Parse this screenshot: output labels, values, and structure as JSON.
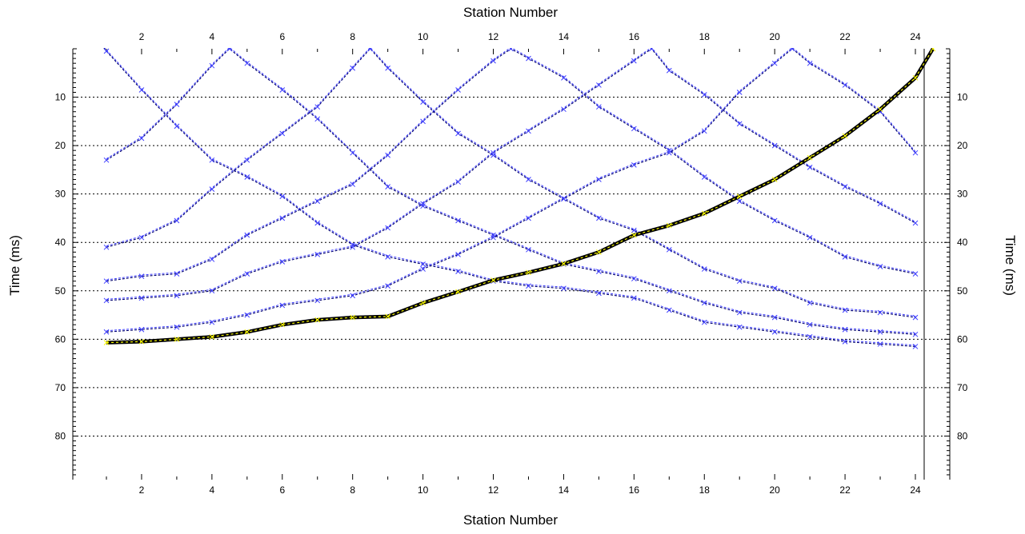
{
  "chart_data": {
    "type": "line",
    "title": "",
    "xlabel": "Station Number",
    "ylabel": "Time (ms)",
    "y_reversed": true,
    "xlim": [
      0.1,
      24.6
    ],
    "ylim": [
      0,
      89
    ],
    "x_ticks": [
      2,
      4,
      6,
      8,
      10,
      12,
      14,
      16,
      18,
      20,
      22,
      24
    ],
    "y_ticks": [
      10,
      20,
      30,
      40,
      50,
      60,
      70,
      80
    ],
    "grid": "horizontal-dashed",
    "marker_line_x": 24.25,
    "colors": {
      "pick": "#3c3cff",
      "model": "#00006e",
      "highlight": "#000000",
      "highlight_fill": "#ffff00"
    },
    "series": [
      {
        "x": [
          0.5,
          1,
          2,
          3,
          4,
          5,
          6,
          7,
          8,
          9,
          10,
          11,
          12,
          13,
          14,
          15,
          16,
          17,
          18,
          19,
          20,
          21,
          22,
          23,
          24
        ],
        "y": [
          -4,
          0.5,
          8.5,
          16,
          23,
          26.5,
          30.5,
          36,
          40.5,
          43,
          44.5,
          46,
          48,
          49,
          49.5,
          50.5,
          51.5,
          54,
          56.5,
          57.5,
          58.5,
          59.5,
          60.5,
          61,
          61.5
        ]
      },
      {
        "x": [
          1,
          2,
          3,
          4,
          4.5,
          5,
          6,
          7,
          8,
          9,
          10,
          11,
          12,
          13,
          14,
          15,
          16,
          17,
          18,
          19,
          20,
          21,
          22,
          23,
          24
        ],
        "y": [
          23,
          18.5,
          11.5,
          3.5,
          0,
          3,
          8.5,
          14.5,
          21.5,
          28.5,
          32.5,
          35.5,
          38.5,
          41.5,
          44.5,
          46,
          47.5,
          50,
          52.5,
          54.5,
          55.5,
          57,
          58,
          58.5,
          59
        ]
      },
      {
        "x": [
          1,
          2,
          3,
          4,
          5,
          6,
          7,
          8,
          8.5,
          9,
          10,
          11,
          12,
          13,
          14,
          15,
          16,
          17,
          18,
          19,
          20,
          21,
          22,
          23,
          24
        ],
        "y": [
          41,
          39,
          35.5,
          29,
          23,
          17.5,
          12,
          4,
          0,
          4,
          11,
          17.5,
          22,
          27,
          31,
          35,
          37.5,
          41.5,
          45.5,
          48,
          49.5,
          52.5,
          54,
          54.5,
          55.5
        ]
      },
      {
        "x": [
          1,
          2,
          3,
          4,
          5,
          6,
          7,
          8,
          9,
          10,
          11,
          12,
          12.5,
          13,
          14,
          15,
          16,
          17,
          18,
          19,
          20,
          21,
          22,
          23,
          24
        ],
        "y": [
          48,
          47,
          46.5,
          43.5,
          38.5,
          35,
          31.5,
          28,
          22,
          15,
          8.5,
          2.5,
          0,
          2,
          6,
          12,
          16.5,
          21,
          26.5,
          31.5,
          35.5,
          39,
          43,
          45,
          46.5
        ]
      },
      {
        "x": [
          1,
          2,
          3,
          4,
          5,
          6,
          7,
          8,
          9,
          10,
          11,
          12,
          13,
          14,
          15,
          16,
          16.5,
          17,
          18,
          19,
          20,
          21,
          22,
          23,
          24
        ],
        "y": [
          52,
          51.5,
          51,
          50,
          46.5,
          44,
          42.5,
          41,
          37,
          32,
          27.5,
          21.5,
          17,
          12.5,
          7.5,
          2.5,
          0,
          4.5,
          9.5,
          15.5,
          20,
          24.5,
          28.5,
          32,
          36
        ]
      },
      {
        "x": [
          1,
          2,
          3,
          4,
          5,
          6,
          7,
          8,
          9,
          10,
          11,
          12,
          13,
          14,
          15,
          16,
          17,
          18,
          19,
          20,
          20.5,
          21,
          22,
          23,
          24
        ],
        "y": [
          58.5,
          58,
          57.5,
          56.5,
          55,
          53,
          52,
          51,
          49,
          45.5,
          42.5,
          39,
          35,
          31,
          27,
          24,
          21.5,
          17,
          9,
          3,
          0,
          3,
          7.5,
          13,
          21.5
        ]
      },
      {
        "x": [
          1,
          2,
          3,
          4,
          5,
          6,
          7,
          8,
          9,
          10,
          11,
          12,
          13,
          14,
          15,
          16,
          17,
          18,
          19,
          20,
          21,
          22,
          23,
          24,
          24.5
        ],
        "y": [
          60.7,
          60.5,
          60,
          59.5,
          58.5,
          57,
          56,
          55.5,
          55.3,
          52.5,
          50.2,
          47.8,
          46.2,
          44.4,
          42,
          38.5,
          36.5,
          34,
          30.5,
          27,
          22.5,
          18,
          12.5,
          6,
          0
        ],
        "highlight": true
      }
    ]
  }
}
